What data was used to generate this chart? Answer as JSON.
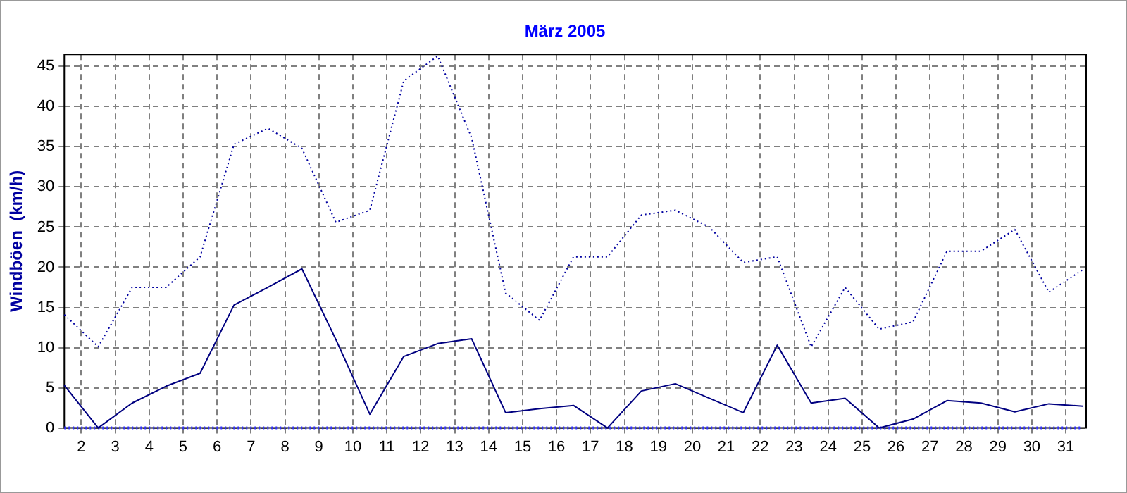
{
  "chart_data": {
    "type": "line",
    "title": "März 2005",
    "ylabel": "Windböen  (km/h)",
    "x": [
      1.5,
      2.5,
      3.5,
      4.5,
      5.5,
      6.5,
      7.5,
      8.5,
      9.5,
      10.5,
      11.5,
      12.5,
      13.5,
      14.5,
      15.5,
      16.5,
      17.5,
      18.5,
      19.5,
      20.5,
      21.5,
      22.5,
      23.5,
      24.5,
      25.5,
      26.5,
      27.5,
      28.5,
      29.5,
      30.5,
      31.5
    ],
    "xlim": [
      1.5,
      31.6
    ],
    "xticks": [
      2,
      3,
      4,
      5,
      6,
      7,
      8,
      9,
      10,
      11,
      12,
      13,
      14,
      15,
      16,
      17,
      18,
      19,
      20,
      21,
      22,
      23,
      24,
      25,
      26,
      27,
      28,
      29,
      30,
      31
    ],
    "ylim": [
      0,
      46.5
    ],
    "yticks": [
      0,
      5,
      10,
      15,
      20,
      25,
      30,
      35,
      40,
      45
    ],
    "grid": true,
    "marker": "none",
    "series": [
      {
        "color": "#0000a0",
        "line_style": "dotted",
        "values": [
          14.1,
          10.1,
          17.5,
          17.5,
          21.3,
          35.3,
          37.3,
          34.8,
          25.6,
          27.1,
          43.2,
          46.3,
          36.1,
          16.8,
          13.4,
          21.3,
          21.3,
          26.5,
          27.1,
          25.0,
          20.6,
          21.3,
          10.1,
          17.5,
          12.3,
          13.2,
          22.0,
          22.0,
          24.7,
          16.9,
          19.7
        ]
      },
      {
        "color": "#000080",
        "line_style": "solid",
        "values": [
          5.3,
          0,
          3.1,
          5.2,
          6.8,
          15.3,
          17.5,
          19.8,
          11.0,
          1.7,
          8.9,
          10.5,
          11.1,
          1.9,
          2.4,
          2.8,
          0,
          4.6,
          5.5,
          3.7,
          1.9,
          10.3,
          3.1,
          3.7,
          0,
          1.1,
          3.4,
          3.1,
          2.0,
          3.0,
          2.7
        ]
      },
      {
        "color": "#3030ff",
        "line_style": "dotted",
        "values": [
          0,
          0,
          0,
          0,
          0,
          0,
          0,
          0,
          0,
          0,
          0,
          0,
          0,
          0,
          0,
          0,
          0,
          0,
          0,
          0,
          0,
          0,
          0,
          0,
          0,
          0,
          0,
          0,
          0,
          0,
          0
        ]
      }
    ]
  }
}
